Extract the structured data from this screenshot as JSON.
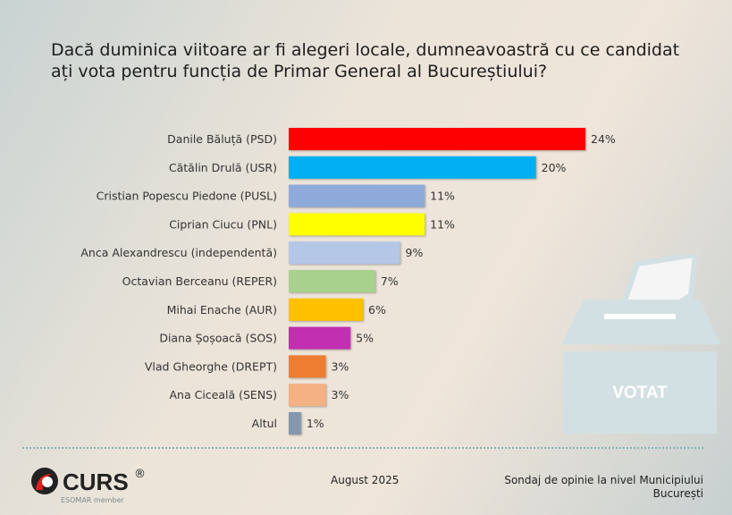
{
  "chart_data": {
    "type": "bar",
    "orientation": "horizontal",
    "title": "Dacă duminica viitoare ar fi alegeri locale, dumneavoastră cu ce candidat ați vota pentru funcția de Primar General al Bucureștiului?",
    "categories": [
      "Danile Băluță (PSD)",
      "Cătălin Drulă (USR)",
      "Cristian Popescu Piedone (PUSL)",
      "Ciprian Ciucu (PNL)",
      "Anca Alexandrescu (independentă)",
      "Octavian Berceanu (REPER)",
      "Mihai Enache (AUR)",
      "Diana Șoșoacă (SOS)",
      "Vlad Gheorghe (DREPT)",
      "Ana Ciceală (SENS)",
      "Altul"
    ],
    "values": [
      24,
      20,
      11,
      11,
      9,
      7,
      6,
      5,
      3,
      3,
      1
    ],
    "data_labels": [
      "24%",
      "20%",
      "11%",
      "11%",
      "9%",
      "7%",
      "6%",
      "5%",
      "3%",
      "3%",
      "1%"
    ],
    "colors": [
      "#ff0000",
      "#00b0f0",
      "#8eaadb",
      "#ffff00",
      "#b4c7e7",
      "#a9d18e",
      "#ffc000",
      "#c030b0",
      "#ed7d31",
      "#f4b183",
      "#8496b0"
    ],
    "xlim": [
      0,
      24
    ],
    "grid": false,
    "legend": "none"
  },
  "ballot": {
    "label": "VOTAT"
  },
  "footer": {
    "logo_text": "CURS",
    "logo_reg": "®",
    "logo_sub": "ESOMAR member",
    "date": "August 2025",
    "source_line1": "Sondaj de opinie la nivel Municipiului",
    "source_line2": "București"
  }
}
